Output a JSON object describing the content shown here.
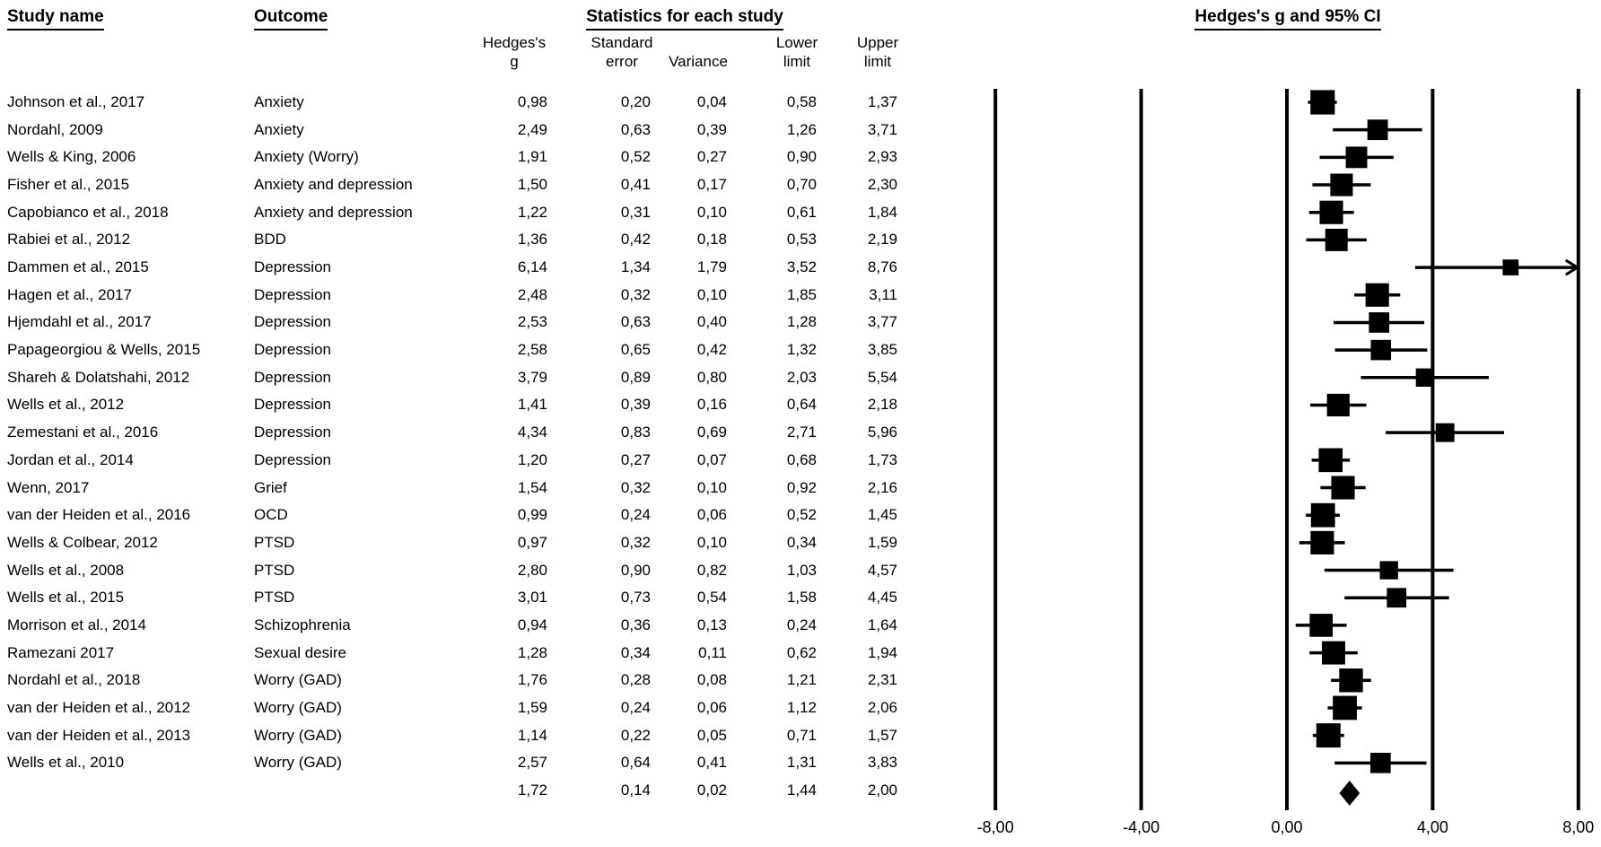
{
  "figure": {
    "col_study": "Study name",
    "col_outcome": "Outcome",
    "stats_header": "Statistics for each study",
    "plot_header": "Hedges's g and 95% CI",
    "subcols": {
      "g": "Hedges's\ng",
      "se": "Standard\nerror",
      "variance": "Variance",
      "lower": "Lower\nlimit",
      "upper": "Upper\nlimit"
    },
    "decimal_separator": ",",
    "ink_color": "#000000",
    "background_color": "#ffffff"
  },
  "chart_data": {
    "type": "forest",
    "title": "Hedges's g and 95% CI",
    "stats_title": "Statistics for each study",
    "effect_measure": "Hedges's g",
    "columns": [
      "Study name",
      "Outcome",
      "Hedges's g",
      "Standard error",
      "Variance",
      "Lower limit",
      "Upper limit"
    ],
    "x_axis": {
      "range": [
        -8,
        8
      ],
      "ticks": [
        -8,
        -4,
        0,
        4,
        8
      ],
      "tick_labels": [
        "-8,00",
        "-4,00",
        "0,00",
        "4,00",
        "8,00"
      ],
      "gridlines": true,
      "legend": "none"
    },
    "studies": [
      {
        "name": "Johnson et al., 2017",
        "outcome": "Anxiety",
        "g": 0.98,
        "se": 0.2,
        "variance": 0.04,
        "lower": 0.58,
        "upper": 1.37
      },
      {
        "name": "Nordahl, 2009",
        "outcome": "Anxiety",
        "g": 2.49,
        "se": 0.63,
        "variance": 0.39,
        "lower": 1.26,
        "upper": 3.71
      },
      {
        "name": "Wells & King, 2006",
        "outcome": "Anxiety (Worry)",
        "g": 1.91,
        "se": 0.52,
        "variance": 0.27,
        "lower": 0.9,
        "upper": 2.93
      },
      {
        "name": "Fisher et al., 2015",
        "outcome": "Anxiety and depression",
        "g": 1.5,
        "se": 0.41,
        "variance": 0.17,
        "lower": 0.7,
        "upper": 2.3
      },
      {
        "name": "Capobianco et al., 2018",
        "outcome": "Anxiety and depression",
        "g": 1.22,
        "se": 0.31,
        "variance": 0.1,
        "lower": 0.61,
        "upper": 1.84
      },
      {
        "name": "Rabiei et al., 2012",
        "outcome": "BDD",
        "g": 1.36,
        "se": 0.42,
        "variance": 0.18,
        "lower": 0.53,
        "upper": 2.19
      },
      {
        "name": "Dammen et al., 2015",
        "outcome": "Depression",
        "g": 6.14,
        "se": 1.34,
        "variance": 1.79,
        "lower": 3.52,
        "upper": 8.76
      },
      {
        "name": "Hagen et al., 2017",
        "outcome": "Depression",
        "g": 2.48,
        "se": 0.32,
        "variance": 0.1,
        "lower": 1.85,
        "upper": 3.11
      },
      {
        "name": "Hjemdahl et al., 2017",
        "outcome": "Depression",
        "g": 2.53,
        "se": 0.63,
        "variance": 0.4,
        "lower": 1.28,
        "upper": 3.77
      },
      {
        "name": "Papageorgiou & Wells, 2015",
        "outcome": "Depression",
        "g": 2.58,
        "se": 0.65,
        "variance": 0.42,
        "lower": 1.32,
        "upper": 3.85
      },
      {
        "name": "Shareh & Dolatshahi, 2012",
        "outcome": "Depression",
        "g": 3.79,
        "se": 0.89,
        "variance": 0.8,
        "lower": 2.03,
        "upper": 5.54
      },
      {
        "name": "Wells et al., 2012",
        "outcome": "Depression",
        "g": 1.41,
        "se": 0.39,
        "variance": 0.16,
        "lower": 0.64,
        "upper": 2.18
      },
      {
        "name": "Zemestani et al., 2016",
        "outcome": "Depression",
        "g": 4.34,
        "se": 0.83,
        "variance": 0.69,
        "lower": 2.71,
        "upper": 5.96
      },
      {
        "name": "Jordan et al., 2014",
        "outcome": "Depression",
        "g": 1.2,
        "se": 0.27,
        "variance": 0.07,
        "lower": 0.68,
        "upper": 1.73
      },
      {
        "name": "Wenn, 2017",
        "outcome": "Grief",
        "g": 1.54,
        "se": 0.32,
        "variance": 0.1,
        "lower": 0.92,
        "upper": 2.16
      },
      {
        "name": "van der Heiden et al., 2016",
        "outcome": "OCD",
        "g": 0.99,
        "se": 0.24,
        "variance": 0.06,
        "lower": 0.52,
        "upper": 1.45
      },
      {
        "name": "Wells & Colbear, 2012",
        "outcome": "PTSD",
        "g": 0.97,
        "se": 0.32,
        "variance": 0.1,
        "lower": 0.34,
        "upper": 1.59
      },
      {
        "name": "Wells et al., 2008",
        "outcome": "PTSD",
        "g": 2.8,
        "se": 0.9,
        "variance": 0.82,
        "lower": 1.03,
        "upper": 4.57
      },
      {
        "name": "Wells et al., 2015",
        "outcome": "PTSD",
        "g": 3.01,
        "se": 0.73,
        "variance": 0.54,
        "lower": 1.58,
        "upper": 4.45
      },
      {
        "name": "Morrison et al., 2014",
        "outcome": "Schizophrenia",
        "g": 0.94,
        "se": 0.36,
        "variance": 0.13,
        "lower": 0.24,
        "upper": 1.64
      },
      {
        "name": "Ramezani 2017",
        "outcome": "Sexual desire",
        "g": 1.28,
        "se": 0.34,
        "variance": 0.11,
        "lower": 0.62,
        "upper": 1.94
      },
      {
        "name": "Nordahl et al., 2018",
        "outcome": "Worry (GAD)",
        "g": 1.76,
        "se": 0.28,
        "variance": 0.08,
        "lower": 1.21,
        "upper": 2.31
      },
      {
        "name": "van der Heiden et al., 2012",
        "outcome": "Worry (GAD)",
        "g": 1.59,
        "se": 0.24,
        "variance": 0.06,
        "lower": 1.12,
        "upper": 2.06
      },
      {
        "name": "van der Heiden et al., 2013",
        "outcome": "Worry (GAD)",
        "g": 1.14,
        "se": 0.22,
        "variance": 0.05,
        "lower": 0.71,
        "upper": 1.57
      },
      {
        "name": "Wells et al., 2010",
        "outcome": "Worry (GAD)",
        "g": 2.57,
        "se": 0.64,
        "variance": 0.41,
        "lower": 1.31,
        "upper": 3.83
      }
    ],
    "summary": {
      "g": 1.72,
      "se": 0.14,
      "variance": 0.02,
      "lower": 1.44,
      "upper": 2.0
    }
  }
}
